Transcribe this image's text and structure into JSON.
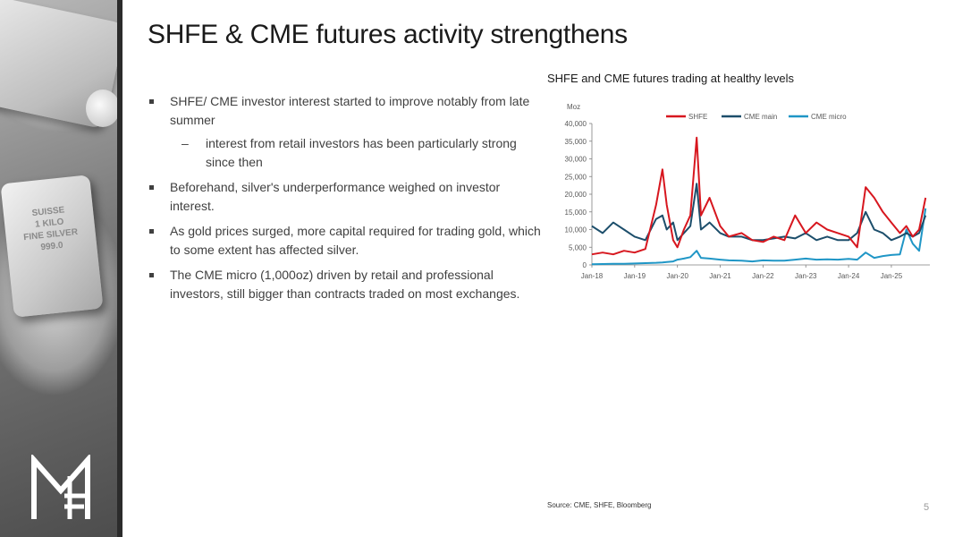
{
  "slide": {
    "title": "SHFE & CME futures activity strengthens",
    "page_number": "5",
    "source": "Source: CME, SHFE, Bloomberg"
  },
  "sidebar": {
    "bar_text": [
      "SUISSE",
      "1 KILO",
      "FINE SILVER",
      "999.0"
    ],
    "logo_icon": "mf-monogram-logo"
  },
  "bullets": [
    {
      "text": "SHFE/ CME investor interest started to improve notably from late summer",
      "sub": [
        "interest from retail investors has been particularly strong since then"
      ]
    },
    {
      "text": "Beforehand, silver's underperformance weighed on investor interest.",
      "sub": []
    },
    {
      "text": "As gold prices surged, more capital required for trading gold, which to some extent has affected silver.",
      "sub": []
    },
    {
      "text": "The CME micro (1,000oz) driven by retail and professional investors, still bigger than contracts traded on most exchanges.",
      "sub": []
    }
  ],
  "chart_data": {
    "type": "line",
    "title": "SHFE and CME futures trading at healthy levels",
    "ylabel": "Moz",
    "xlabel": "",
    "ylim": [
      0,
      40000
    ],
    "yticks": [
      0,
      5000,
      10000,
      15000,
      20000,
      25000,
      30000,
      35000,
      40000
    ],
    "ytick_labels": [
      "0",
      "5,000",
      "10,000",
      "15,000",
      "20,000",
      "25,000",
      "30,000",
      "35,000",
      "40,000"
    ],
    "xlim": [
      2018.0,
      2025.9
    ],
    "xticks": [
      2018,
      2019,
      2020,
      2021,
      2022,
      2023,
      2024,
      2025
    ],
    "xtick_labels": [
      "Jan-18",
      "Jan-19",
      "Jan-20",
      "Jan-21",
      "Jan-22",
      "Jan-23",
      "Jan-24",
      "Jan-25"
    ],
    "legend_position": "top",
    "x": [
      2018.0,
      2018.25,
      2018.5,
      2018.75,
      2019.0,
      2019.25,
      2019.5,
      2019.65,
      2019.75,
      2019.9,
      2020.0,
      2020.15,
      2020.3,
      2020.45,
      2020.55,
      2020.75,
      2021.0,
      2021.2,
      2021.5,
      2021.75,
      2022.0,
      2022.25,
      2022.5,
      2022.75,
      2023.0,
      2023.25,
      2023.5,
      2023.75,
      2024.0,
      2024.2,
      2024.4,
      2024.6,
      2024.8,
      2025.0,
      2025.2,
      2025.35,
      2025.5,
      2025.65,
      2025.8
    ],
    "series": [
      {
        "name": "SHFE",
        "color": "#d7171f",
        "values": [
          3000,
          3500,
          3000,
          4000,
          3500,
          4500,
          17000,
          27000,
          17000,
          7000,
          5000,
          10000,
          14000,
          36000,
          14000,
          19000,
          11000,
          8000,
          9000,
          7000,
          6500,
          8000,
          7000,
          14000,
          9000,
          12000,
          10000,
          9000,
          8000,
          5000,
          22000,
          19000,
          15000,
          12000,
          9000,
          11000,
          8000,
          10000,
          19000
        ]
      },
      {
        "name": "CME main",
        "color": "#1c4e6b",
        "values": [
          11000,
          9000,
          12000,
          10000,
          8000,
          7000,
          13000,
          14000,
          10000,
          12000,
          7000,
          9000,
          11000,
          23000,
          10000,
          12000,
          9000,
          8000,
          8000,
          7000,
          7000,
          7500,
          8000,
          7500,
          9000,
          7000,
          8000,
          7000,
          7000,
          9000,
          15000,
          10000,
          9000,
          7000,
          8000,
          9000,
          8000,
          9000,
          14000
        ]
      },
      {
        "name": "CME micro",
        "color": "#1f96c6",
        "values": [
          200,
          250,
          300,
          300,
          400,
          500,
          600,
          700,
          800,
          1000,
          1500,
          1800,
          2200,
          4000,
          2000,
          1800,
          1500,
          1300,
          1200,
          1000,
          1300,
          1200,
          1200,
          1500,
          1800,
          1500,
          1600,
          1500,
          1700,
          1500,
          3500,
          2000,
          2500,
          2800,
          3000,
          10000,
          6000,
          4000,
          16000
        ]
      }
    ]
  }
}
